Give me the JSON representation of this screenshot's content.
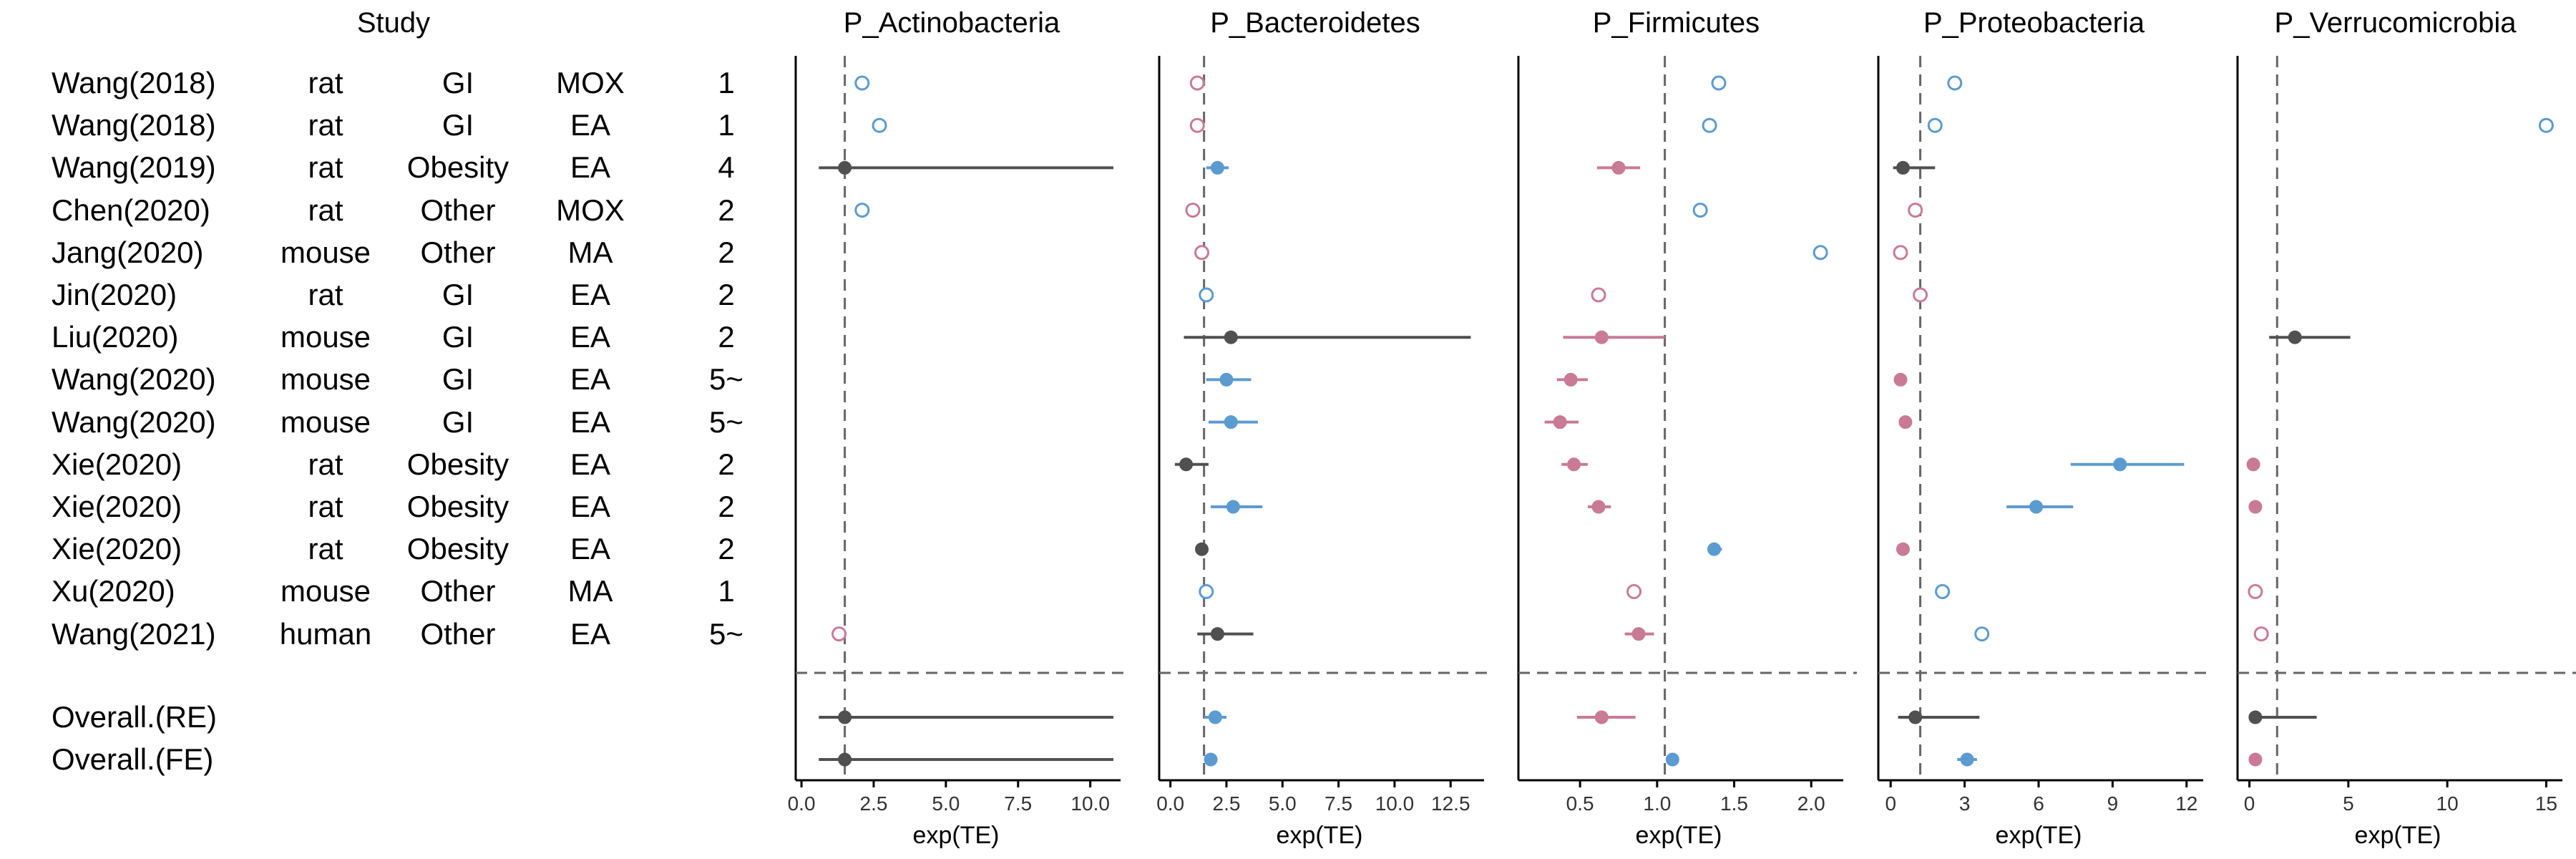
{
  "table": {
    "header": "Study",
    "rows": [
      {
        "study": "Wang(2018)",
        "species": "rat",
        "model": "GI",
        "method": "MOX",
        "n": "1"
      },
      {
        "study": "Wang(2018)",
        "species": "rat",
        "model": "GI",
        "method": "EA",
        "n": "1"
      },
      {
        "study": "Wang(2019)",
        "species": "rat",
        "model": "Obesity",
        "method": "EA",
        "n": "4"
      },
      {
        "study": "Chen(2020)",
        "species": "rat",
        "model": "Other",
        "method": "MOX",
        "n": "2"
      },
      {
        "study": "Jang(2020)",
        "species": "mouse",
        "model": "Other",
        "method": "MA",
        "n": "2"
      },
      {
        "study": "Jin(2020)",
        "species": "rat",
        "model": "GI",
        "method": "EA",
        "n": "2"
      },
      {
        "study": "Liu(2020)",
        "species": "mouse",
        "model": "GI",
        "method": "EA",
        "n": "2"
      },
      {
        "study": "Wang(2020)",
        "species": "mouse",
        "model": "GI",
        "method": "EA",
        "n": "5~"
      },
      {
        "study": "Wang(2020)",
        "species": "mouse",
        "model": "GI",
        "method": "EA",
        "n": "5~"
      },
      {
        "study": "Xie(2020)",
        "species": "rat",
        "model": "Obesity",
        "method": "EA",
        "n": "2"
      },
      {
        "study": "Xie(2020)",
        "species": "rat",
        "model": "Obesity",
        "method": "EA",
        "n": "2"
      },
      {
        "study": "Xie(2020)",
        "species": "rat",
        "model": "Obesity",
        "method": "EA",
        "n": "2"
      },
      {
        "study": "Xu(2020)",
        "species": "mouse",
        "model": "Other",
        "method": "MA",
        "n": "1"
      },
      {
        "study": "Wang(2021)",
        "species": "human",
        "model": "Other",
        "method": "EA",
        "n": "5~"
      }
    ],
    "overall": [
      {
        "study": "Overall.(RE)"
      },
      {
        "study": "Overall.(FE)"
      }
    ]
  },
  "colors": {
    "up": "#5b9bd0",
    "down": "#c97a95",
    "ns": "#505050",
    "axis": "#000000",
    "ref": "#666666"
  },
  "chart_data": [
    {
      "type": "scatter",
      "title": "P_Actinobacteria",
      "xlabel": "exp(TE)",
      "xlim": [
        -0.2,
        10.9
      ],
      "ticks": [
        "0.0",
        "2.5",
        "5.0",
        "7.5",
        "10.0"
      ],
      "tick_values": [
        0,
        2.5,
        5,
        7.5,
        10
      ],
      "ref": 1.5,
      "points": [
        {
          "row": 0,
          "x": 2.1,
          "lo": null,
          "hi": null,
          "color": "up",
          "filled": false
        },
        {
          "row": 1,
          "x": 2.7,
          "lo": null,
          "hi": null,
          "color": "up",
          "filled": false
        },
        {
          "row": 2,
          "x": 1.5,
          "lo": 0.6,
          "hi": 10.8,
          "color": "ns",
          "filled": true
        },
        {
          "row": 3,
          "x": 2.1,
          "lo": null,
          "hi": null,
          "color": "up",
          "filled": false
        },
        {
          "row": 13,
          "x": 1.3,
          "lo": null,
          "hi": null,
          "color": "down",
          "filled": false
        }
      ],
      "overall": [
        {
          "row": 0,
          "x": 1.5,
          "lo": 0.6,
          "hi": 10.8,
          "color": "ns",
          "filled": true
        },
        {
          "row": 1,
          "x": 1.5,
          "lo": 0.6,
          "hi": 10.8,
          "color": "ns",
          "filled": true
        }
      ]
    },
    {
      "type": "scatter",
      "title": "P_Bacteroidetes",
      "xlabel": "exp(TE)",
      "xlim": [
        -0.5,
        13.8
      ],
      "ticks": [
        "0.0",
        "2.5",
        "5.0",
        "7.5",
        "10.0",
        "12.5"
      ],
      "tick_values": [
        0,
        2.5,
        5,
        7.5,
        10,
        12.5
      ],
      "ref": 1.5,
      "points": [
        {
          "row": 0,
          "x": 1.2,
          "lo": null,
          "hi": null,
          "color": "down",
          "filled": false
        },
        {
          "row": 1,
          "x": 1.2,
          "lo": null,
          "hi": null,
          "color": "down",
          "filled": false
        },
        {
          "row": 2,
          "x": 2.1,
          "lo": 1.6,
          "hi": 2.6,
          "color": "up",
          "filled": true
        },
        {
          "row": 3,
          "x": 1.0,
          "lo": null,
          "hi": null,
          "color": "down",
          "filled": false
        },
        {
          "row": 4,
          "x": 1.4,
          "lo": null,
          "hi": null,
          "color": "down",
          "filled": false
        },
        {
          "row": 5,
          "x": 1.6,
          "lo": null,
          "hi": null,
          "color": "up",
          "filled": false
        },
        {
          "row": 6,
          "x": 2.7,
          "lo": 0.6,
          "hi": 13.4,
          "color": "ns",
          "filled": true
        },
        {
          "row": 7,
          "x": 2.5,
          "lo": 1.6,
          "hi": 3.6,
          "color": "up",
          "filled": true
        },
        {
          "row": 8,
          "x": 2.7,
          "lo": 1.7,
          "hi": 3.9,
          "color": "up",
          "filled": true
        },
        {
          "row": 9,
          "x": 0.7,
          "lo": 0.2,
          "hi": 1.7,
          "color": "ns",
          "filled": true
        },
        {
          "row": 10,
          "x": 2.8,
          "lo": 1.8,
          "hi": 4.1,
          "color": "up",
          "filled": true
        },
        {
          "row": 11,
          "x": 1.4,
          "lo": 1.2,
          "hi": 1.6,
          "color": "ns",
          "filled": true
        },
        {
          "row": 12,
          "x": 1.6,
          "lo": null,
          "hi": null,
          "color": "up",
          "filled": false
        },
        {
          "row": 13,
          "x": 2.1,
          "lo": 1.2,
          "hi": 3.7,
          "color": "ns",
          "filled": true
        }
      ],
      "overall": [
        {
          "row": 0,
          "x": 2.0,
          "lo": 1.5,
          "hi": 2.5,
          "color": "up",
          "filled": true
        },
        {
          "row": 1,
          "x": 1.8,
          "lo": 1.6,
          "hi": 2.0,
          "color": "up",
          "filled": true
        }
      ]
    },
    {
      "type": "scatter",
      "title": "P_Firmicutes",
      "xlabel": "exp(TE)",
      "xlim": [
        0.1,
        2.18
      ],
      "ticks": [
        "0.5",
        "1.0",
        "1.5",
        "2.0"
      ],
      "tick_values": [
        0.5,
        1.0,
        1.5,
        2.0
      ],
      "ref": 1.05,
      "points": [
        {
          "row": 0,
          "x": 1.4,
          "lo": null,
          "hi": null,
          "color": "up",
          "filled": false
        },
        {
          "row": 1,
          "x": 1.34,
          "lo": null,
          "hi": null,
          "color": "up",
          "filled": false
        },
        {
          "row": 2,
          "x": 0.75,
          "lo": 0.61,
          "hi": 0.89,
          "color": "down",
          "filled": true
        },
        {
          "row": 3,
          "x": 1.28,
          "lo": null,
          "hi": null,
          "color": "up",
          "filled": false
        },
        {
          "row": 4,
          "x": 2.06,
          "lo": null,
          "hi": null,
          "color": "up",
          "filled": false
        },
        {
          "row": 5,
          "x": 0.62,
          "lo": null,
          "hi": null,
          "color": "down",
          "filled": false
        },
        {
          "row": 6,
          "x": 0.64,
          "lo": 0.39,
          "hi": 1.05,
          "color": "down",
          "filled": true
        },
        {
          "row": 7,
          "x": 0.44,
          "lo": 0.35,
          "hi": 0.55,
          "color": "down",
          "filled": true
        },
        {
          "row": 8,
          "x": 0.37,
          "lo": 0.27,
          "hi": 0.49,
          "color": "down",
          "filled": true
        },
        {
          "row": 9,
          "x": 0.46,
          "lo": 0.38,
          "hi": 0.55,
          "color": "down",
          "filled": true
        },
        {
          "row": 10,
          "x": 0.62,
          "lo": 0.55,
          "hi": 0.7,
          "color": "down",
          "filled": true
        },
        {
          "row": 11,
          "x": 1.37,
          "lo": 1.33,
          "hi": 1.42,
          "color": "up",
          "filled": true
        },
        {
          "row": 12,
          "x": 0.85,
          "lo": null,
          "hi": null,
          "color": "down",
          "filled": false
        },
        {
          "row": 13,
          "x": 0.88,
          "lo": 0.79,
          "hi": 0.98,
          "color": "down",
          "filled": true
        }
      ],
      "overall": [
        {
          "row": 0,
          "x": 0.64,
          "lo": 0.48,
          "hi": 0.86,
          "color": "down",
          "filled": true
        },
        {
          "row": 1,
          "x": 1.1,
          "lo": 1.08,
          "hi": 1.12,
          "color": "up",
          "filled": true
        }
      ]
    },
    {
      "type": "scatter",
      "title": "P_Proteobacteria",
      "xlabel": "exp(TE)",
      "xlim": [
        -0.5,
        12.5
      ],
      "ticks": [
        "0",
        "3",
        "6",
        "9",
        "12"
      ],
      "tick_values": [
        0,
        3,
        6,
        9,
        12
      ],
      "ref": 1.2,
      "points": [
        {
          "row": 0,
          "x": 2.6,
          "lo": null,
          "hi": null,
          "color": "up",
          "filled": false
        },
        {
          "row": 1,
          "x": 1.8,
          "lo": null,
          "hi": null,
          "color": "up",
          "filled": false
        },
        {
          "row": 2,
          "x": 0.5,
          "lo": 0.1,
          "hi": 1.8,
          "color": "ns",
          "filled": true
        },
        {
          "row": 3,
          "x": 1.0,
          "lo": null,
          "hi": null,
          "color": "down",
          "filled": false
        },
        {
          "row": 4,
          "x": 0.4,
          "lo": null,
          "hi": null,
          "color": "down",
          "filled": false
        },
        {
          "row": 5,
          "x": 1.2,
          "lo": null,
          "hi": null,
          "color": "down",
          "filled": false
        },
        {
          "row": 7,
          "x": 0.4,
          "lo": null,
          "hi": null,
          "color": "down",
          "filled": true
        },
        {
          "row": 8,
          "x": 0.6,
          "lo": null,
          "hi": null,
          "color": "down",
          "filled": true
        },
        {
          "row": 9,
          "x": 9.3,
          "lo": 7.3,
          "hi": 11.9,
          "color": "up",
          "filled": true
        },
        {
          "row": 10,
          "x": 5.9,
          "lo": 4.7,
          "hi": 7.4,
          "color": "up",
          "filled": true
        },
        {
          "row": 11,
          "x": 0.5,
          "lo": null,
          "hi": null,
          "color": "down",
          "filled": true
        },
        {
          "row": 12,
          "x": 2.1,
          "lo": null,
          "hi": null,
          "color": "up",
          "filled": false
        },
        {
          "row": 13,
          "x": 3.7,
          "lo": null,
          "hi": null,
          "color": "up",
          "filled": false
        }
      ],
      "overall": [
        {
          "row": 0,
          "x": 1.0,
          "lo": 0.3,
          "hi": 3.6,
          "color": "ns",
          "filled": true
        },
        {
          "row": 1,
          "x": 3.1,
          "lo": 2.7,
          "hi": 3.5,
          "color": "up",
          "filled": true
        }
      ]
    },
    {
      "type": "scatter",
      "title": "P_Verrucomicrobia",
      "xlabel": "exp(TE)",
      "xlim": [
        -0.6,
        15.6
      ],
      "ticks": [
        "0",
        "5",
        "10",
        "15"
      ],
      "tick_values": [
        0,
        5,
        10,
        15
      ],
      "ref": 1.4,
      "points": [
        {
          "row": 1,
          "x": 15.0,
          "lo": null,
          "hi": null,
          "color": "up",
          "filled": false
        },
        {
          "row": 6,
          "x": 2.3,
          "lo": 1.0,
          "hi": 5.1,
          "color": "ns",
          "filled": true
        },
        {
          "row": 9,
          "x": 0.2,
          "lo": null,
          "hi": null,
          "color": "down",
          "filled": true
        },
        {
          "row": 10,
          "x": 0.3,
          "lo": null,
          "hi": null,
          "color": "down",
          "filled": true
        },
        {
          "row": 12,
          "x": 0.3,
          "lo": null,
          "hi": null,
          "color": "down",
          "filled": false
        },
        {
          "row": 13,
          "x": 0.6,
          "lo": null,
          "hi": null,
          "color": "down",
          "filled": false
        }
      ],
      "overall": [
        {
          "row": 0,
          "x": 0.3,
          "lo": 0.1,
          "hi": 3.4,
          "color": "ns",
          "filled": true
        },
        {
          "row": 1,
          "x": 0.3,
          "lo": null,
          "hi": null,
          "color": "down",
          "filled": true
        }
      ]
    }
  ]
}
